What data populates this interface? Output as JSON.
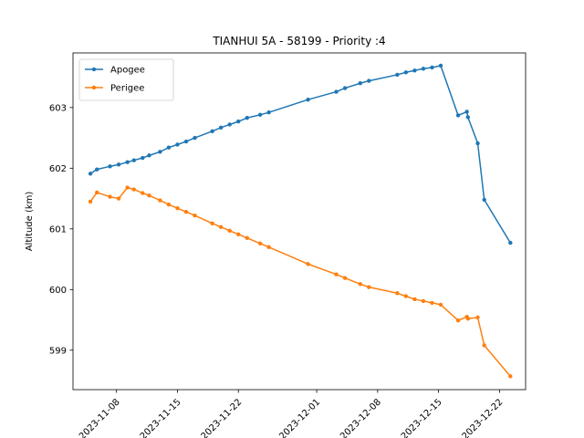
{
  "chart_data": {
    "type": "line",
    "title": "TIANHUI 5A - 58199 - Priority :4",
    "xlabel": "",
    "ylabel": "Altitude (km)",
    "xlim": [
      "2023-11-03",
      "2023-12-25"
    ],
    "ylim": [
      598.35,
      603.9
    ],
    "x_ticks": [
      "2023-11-08",
      "2023-11-15",
      "2023-11-22",
      "2023-12-01",
      "2023-12-08",
      "2023-12-15",
      "2023-12-22"
    ],
    "y_ticks": [
      599,
      600,
      601,
      602,
      603
    ],
    "legend": {
      "placement": "upper-left"
    },
    "grid": false,
    "series": [
      {
        "name": "Apogee",
        "color": "#1f77b4",
        "points": [
          [
            "2023-11-05T00:00",
            601.91
          ],
          [
            "2023-11-05T18:00",
            601.98
          ],
          [
            "2023-11-07T06:00",
            602.03
          ],
          [
            "2023-11-08T06:00",
            602.06
          ],
          [
            "2023-11-09T06:00",
            602.1
          ],
          [
            "2023-11-10T00:00",
            602.13
          ],
          [
            "2023-11-11T00:00",
            602.17
          ],
          [
            "2023-11-11T18:00",
            602.21
          ],
          [
            "2023-11-13T00:00",
            602.27
          ],
          [
            "2023-11-14T00:00",
            602.34
          ],
          [
            "2023-11-15T00:00",
            602.39
          ],
          [
            "2023-11-16T00:00",
            602.44
          ],
          [
            "2023-11-17T00:00",
            602.5
          ],
          [
            "2023-11-19T00:00",
            602.61
          ],
          [
            "2023-11-20T00:00",
            602.67
          ],
          [
            "2023-11-21T00:00",
            602.72
          ],
          [
            "2023-11-22T00:00",
            602.77
          ],
          [
            "2023-11-23T00:00",
            602.83
          ],
          [
            "2023-11-24T12:00",
            602.88
          ],
          [
            "2023-11-25T12:00",
            602.92
          ],
          [
            "2023-11-30T00:00",
            603.13
          ],
          [
            "2023-12-03T06:00",
            603.26
          ],
          [
            "2023-12-04T06:00",
            603.32
          ],
          [
            "2023-12-06T00:00",
            603.4
          ],
          [
            "2023-12-07T00:00",
            603.44
          ],
          [
            "2023-12-10T06:00",
            603.54
          ],
          [
            "2023-12-11T06:00",
            603.58
          ],
          [
            "2023-12-12T06:00",
            603.61
          ],
          [
            "2023-12-13T06:00",
            603.64
          ],
          [
            "2023-12-14T06:00",
            603.66
          ],
          [
            "2023-12-15T06:00",
            603.69
          ],
          [
            "2023-12-17T06:00",
            602.87
          ],
          [
            "2023-12-18T06:00",
            602.93
          ],
          [
            "2023-12-18T09:00",
            602.84
          ],
          [
            "2023-12-19T12:00",
            602.41
          ],
          [
            "2023-12-20T06:00",
            601.48
          ],
          [
            "2023-12-23T06:00",
            600.77
          ]
        ]
      },
      {
        "name": "Perigee",
        "color": "#ff7f0e",
        "points": [
          [
            "2023-11-05T00:00",
            601.45
          ],
          [
            "2023-11-05T18:00",
            601.6
          ],
          [
            "2023-11-07T06:00",
            601.53
          ],
          [
            "2023-11-08T06:00",
            601.5
          ],
          [
            "2023-11-09T06:00",
            601.68
          ],
          [
            "2023-11-10T00:00",
            601.65
          ],
          [
            "2023-11-11T00:00",
            601.59
          ],
          [
            "2023-11-11T18:00",
            601.55
          ],
          [
            "2023-11-13T00:00",
            601.47
          ],
          [
            "2023-11-14T00:00",
            601.4
          ],
          [
            "2023-11-15T00:00",
            601.34
          ],
          [
            "2023-11-16T00:00",
            601.28
          ],
          [
            "2023-11-17T00:00",
            601.22
          ],
          [
            "2023-11-19T00:00",
            601.09
          ],
          [
            "2023-11-20T00:00",
            601.03
          ],
          [
            "2023-11-21T00:00",
            600.97
          ],
          [
            "2023-11-22T00:00",
            600.91
          ],
          [
            "2023-11-23T00:00",
            600.85
          ],
          [
            "2023-11-24T12:00",
            600.76
          ],
          [
            "2023-11-25T12:00",
            600.7
          ],
          [
            "2023-11-30T00:00",
            600.42
          ],
          [
            "2023-12-03T06:00",
            600.25
          ],
          [
            "2023-12-04T06:00",
            600.19
          ],
          [
            "2023-12-06T00:00",
            600.09
          ],
          [
            "2023-12-07T00:00",
            600.04
          ],
          [
            "2023-12-10T06:00",
            599.94
          ],
          [
            "2023-12-11T06:00",
            599.89
          ],
          [
            "2023-12-12T06:00",
            599.84
          ],
          [
            "2023-12-13T06:00",
            599.81
          ],
          [
            "2023-12-14T06:00",
            599.78
          ],
          [
            "2023-12-15T06:00",
            599.75
          ],
          [
            "2023-12-17T06:00",
            599.49
          ],
          [
            "2023-12-18T06:00",
            599.55
          ],
          [
            "2023-12-18T09:00",
            599.52
          ],
          [
            "2023-12-19T12:00",
            599.54
          ],
          [
            "2023-12-20T06:00",
            599.08
          ],
          [
            "2023-12-23T06:00",
            598.57
          ]
        ]
      }
    ]
  }
}
